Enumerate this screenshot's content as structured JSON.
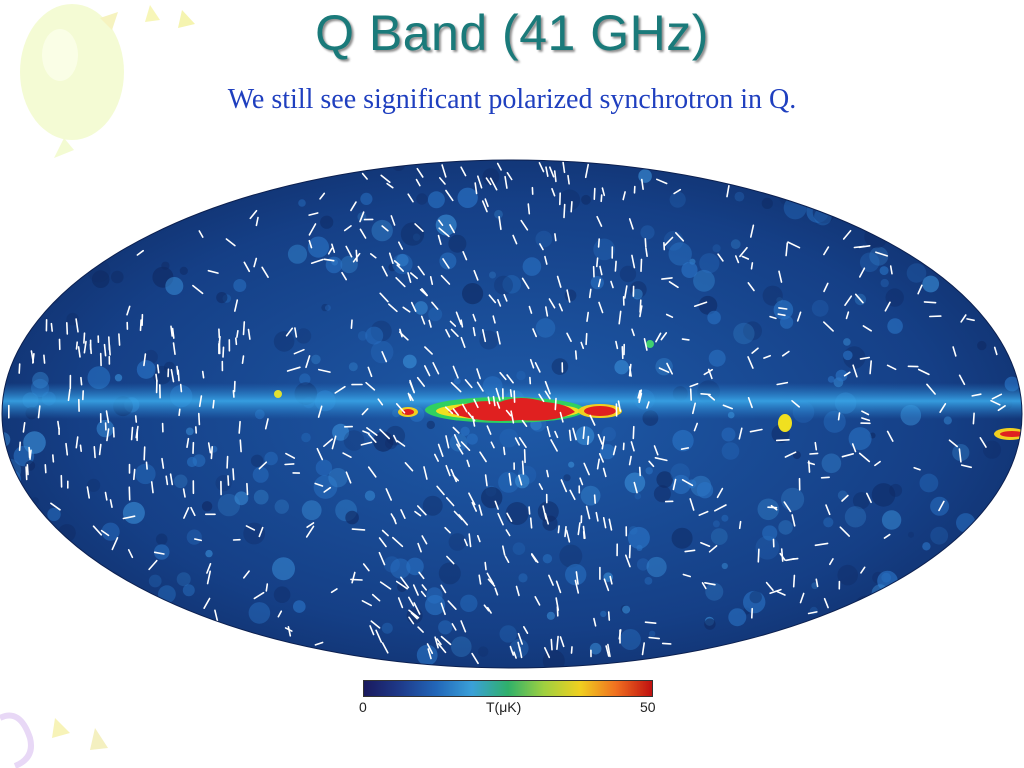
{
  "slide": {
    "title": "Q Band (41 GHz)",
    "subtitle": "We still see significant polarized synchrotron in Q."
  },
  "colorbar": {
    "min_label": "0",
    "unit_label": "T(μK)",
    "max_label": "50",
    "colors": [
      "#1a1a5e",
      "#1e3a8a",
      "#2266b8",
      "#3aa0d8",
      "#2fb06a",
      "#9fd040",
      "#f0d020",
      "#f07020",
      "#c01010"
    ]
  },
  "map": {
    "projection": "Mollweide all-sky",
    "background": "#123c7a",
    "band_color": "#e02020",
    "vector_color": "#ffffff"
  },
  "colors": {
    "title": "#1a7a7a",
    "subtitle": "#1f3fbf"
  }
}
